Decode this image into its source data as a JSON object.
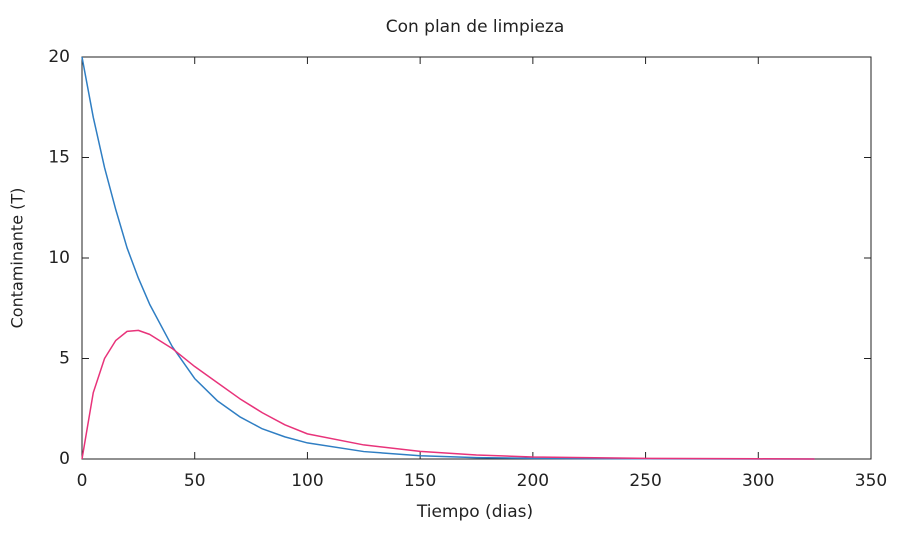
{
  "chart_data": {
    "type": "line",
    "title": "Con plan de limpieza",
    "xlabel": "Tiempo (dias)",
    "ylabel": "Contaminante (T)",
    "x": [
      0,
      5,
      10,
      15,
      20,
      25,
      30,
      40,
      50,
      60,
      70,
      80,
      90,
      100,
      125,
      150,
      175,
      200,
      250,
      300,
      325
    ],
    "series": [
      {
        "color": "#2f7ec3",
        "values": [
          20,
          17.0,
          14.5,
          12.4,
          10.5,
          9.0,
          7.7,
          5.6,
          4.0,
          2.9,
          2.1,
          1.5,
          1.1,
          0.8,
          0.37,
          0.16,
          0.07,
          0.03,
          0.01,
          0,
          0
        ]
      },
      {
        "color": "#e8337a",
        "values": [
          0,
          3.3,
          5.0,
          5.9,
          6.35,
          6.4,
          6.2,
          5.5,
          4.6,
          3.8,
          3.0,
          2.3,
          1.7,
          1.25,
          0.7,
          0.38,
          0.2,
          0.1,
          0.03,
          0.01,
          0
        ]
      }
    ],
    "xlim": [
      0,
      350
    ],
    "xticks": [
      0,
      50,
      100,
      150,
      200,
      250,
      300,
      350
    ],
    "ylim": [
      0,
      20
    ],
    "yticks": [
      0,
      5,
      10,
      15,
      20
    ]
  }
}
